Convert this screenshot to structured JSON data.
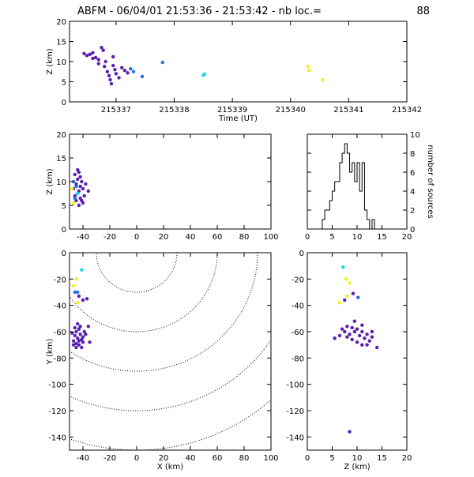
{
  "header": {
    "title": "ABFM - 06/04/01 21:53:36 - 21:53:42 - nb loc.=",
    "count": "88"
  },
  "colors": {
    "purple": "#5a1fb0",
    "blue": "#1f6fe8",
    "cyan": "#18d8e8",
    "yellow": "#f0f020",
    "axis": "#000000"
  },
  "chart_data": [
    {
      "id": "time-height",
      "type": "scatter",
      "xlabel": "Time (UT)",
      "ylabel": "Z (km)",
      "xlim": [
        215336.2,
        215342
      ],
      "ylim": [
        0,
        20
      ],
      "xticks": [
        215337,
        215338,
        215339,
        215340,
        215341,
        215342
      ],
      "yticks": [
        0,
        5,
        10,
        15,
        20
      ],
      "points": [
        [
          215336.45,
          12.0,
          "purple"
        ],
        [
          215336.5,
          11.5,
          "purple"
        ],
        [
          215336.55,
          11.8,
          "purple"
        ],
        [
          215336.6,
          12.2,
          "purple"
        ],
        [
          215336.65,
          11.0,
          "purple"
        ],
        [
          215336.7,
          10.5,
          "purple"
        ],
        [
          215336.75,
          13.5,
          "purple"
        ],
        [
          215336.7,
          9.5,
          "purple"
        ],
        [
          215336.8,
          8.8,
          "purple"
        ],
        [
          215336.78,
          12.8,
          "purple"
        ],
        [
          215336.82,
          10.0,
          "purple"
        ],
        [
          215336.85,
          7.5,
          "purple"
        ],
        [
          215336.88,
          6.5,
          "purple"
        ],
        [
          215336.9,
          5.5,
          "purple"
        ],
        [
          215336.92,
          4.5,
          "purple"
        ],
        [
          215336.95,
          9.0,
          "purple"
        ],
        [
          215336.98,
          8.0,
          "purple"
        ],
        [
          215337.0,
          7.0,
          "purple"
        ],
        [
          215337.05,
          6.0,
          "purple"
        ],
        [
          215337.1,
          8.5,
          "purple"
        ],
        [
          215337.15,
          7.8,
          "purple"
        ],
        [
          215337.2,
          7.2,
          "purple"
        ],
        [
          215336.6,
          10.8,
          "purple"
        ],
        [
          215336.95,
          11.2,
          "purple"
        ],
        [
          215337.25,
          8.2,
          "blue"
        ],
        [
          215337.3,
          7.5,
          "blue"
        ],
        [
          215337.45,
          6.3,
          "blue"
        ],
        [
          215337.8,
          9.8,
          "blue"
        ],
        [
          215338.5,
          6.6,
          "cyan"
        ],
        [
          215338.52,
          6.9,
          "cyan"
        ],
        [
          215340.3,
          8.8,
          "yellow"
        ],
        [
          215340.32,
          7.8,
          "yellow"
        ],
        [
          215340.55,
          5.5,
          "yellow"
        ]
      ]
    },
    {
      "id": "x-height",
      "type": "scatter",
      "xlabel": "",
      "ylabel": "Z (km)",
      "xlim": [
        -50,
        100
      ],
      "ylim": [
        0,
        20
      ],
      "xticks": [
        -40,
        -20,
        0,
        20,
        40,
        60,
        80,
        100
      ],
      "yticks": [
        0,
        5,
        10,
        15,
        20
      ],
      "points": [
        [
          -46,
          11.5,
          "purple"
        ],
        [
          -44,
          10.5,
          "purple"
        ],
        [
          -43,
          12.0,
          "purple"
        ],
        [
          -45,
          9.5,
          "purple"
        ],
        [
          -42,
          9.0,
          "purple"
        ],
        [
          -41,
          10.0,
          "purple"
        ],
        [
          -40,
          8.5,
          "purple"
        ],
        [
          -43,
          8.0,
          "purple"
        ],
        [
          -44,
          7.5,
          "purple"
        ],
        [
          -39,
          7.0,
          "purple"
        ],
        [
          -42,
          6.5,
          "purple"
        ],
        [
          -45,
          6.0,
          "purple"
        ],
        [
          -40,
          5.5,
          "purple"
        ],
        [
          -38,
          9.5,
          "purple"
        ],
        [
          -36,
          8.0,
          "purple"
        ],
        [
          -47,
          8.5,
          "purple"
        ],
        [
          -44,
          12.5,
          "purple"
        ],
        [
          -42,
          11.0,
          "purple"
        ],
        [
          -46,
          7.0,
          "purple"
        ],
        [
          -41,
          6.0,
          "purple"
        ],
        [
          -43,
          5.0,
          "purple"
        ],
        [
          -47,
          10.0,
          "blue"
        ],
        [
          -45,
          9.0,
          "blue"
        ],
        [
          -46,
          6.5,
          "blue"
        ],
        [
          -44,
          7.5,
          "cyan"
        ],
        [
          -48,
          8.5,
          "yellow"
        ],
        [
          -47,
          5.5,
          "yellow"
        ]
      ]
    },
    {
      "id": "histogram",
      "type": "bar",
      "xlabel": "",
      "ylabel": "number of sources",
      "xlim": [
        0,
        20
      ],
      "ylim": [
        0,
        10
      ],
      "xticks": [
        0,
        5,
        10,
        15,
        20
      ],
      "yticks": [
        0,
        2,
        4,
        6,
        8,
        10
      ],
      "bins": [
        [
          3.0,
          1
        ],
        [
          3.5,
          2
        ],
        [
          4.0,
          2
        ],
        [
          4.5,
          3
        ],
        [
          5.0,
          4
        ],
        [
          5.5,
          5
        ],
        [
          6.0,
          5
        ],
        [
          6.5,
          7
        ],
        [
          7.0,
          8
        ],
        [
          7.5,
          9
        ],
        [
          8.0,
          8
        ],
        [
          8.5,
          6
        ],
        [
          9.0,
          7
        ],
        [
          9.5,
          5
        ],
        [
          10.0,
          7
        ],
        [
          10.5,
          4
        ],
        [
          11.0,
          7
        ],
        [
          11.5,
          2
        ],
        [
          12.0,
          1
        ],
        [
          12.5,
          0
        ],
        [
          13.0,
          1
        ],
        [
          13.5,
          0
        ]
      ]
    },
    {
      "id": "plan-view",
      "type": "scatter",
      "xlabel": "X (km)",
      "ylabel": "Y (km)",
      "xlim": [
        -50,
        100
      ],
      "ylim": [
        -150,
        0
      ],
      "xticks": [
        -40,
        -20,
        0,
        20,
        40,
        60,
        80,
        100
      ],
      "yticks": [
        -140,
        -120,
        -100,
        -80,
        -60,
        -40,
        -20,
        0
      ],
      "rings": [
        30,
        60,
        90,
        120,
        150
      ],
      "points": [
        [
          -45,
          -60,
          "purple"
        ],
        [
          -43,
          -58,
          "purple"
        ],
        [
          -46,
          -63,
          "purple"
        ],
        [
          -44,
          -65,
          "purple"
        ],
        [
          -42,
          -62,
          "purple"
        ],
        [
          -41,
          -66,
          "purple"
        ],
        [
          -47,
          -67,
          "purple"
        ],
        [
          -45,
          -69,
          "purple"
        ],
        [
          -43,
          -70,
          "purple"
        ],
        [
          -40,
          -64,
          "purple"
        ],
        [
          -39,
          -60,
          "purple"
        ],
        [
          -42,
          -56,
          "purple"
        ],
        [
          -44,
          -54,
          "purple"
        ],
        [
          -46,
          -57,
          "purple"
        ],
        [
          -48,
          -61,
          "purple"
        ],
        [
          -40,
          -68,
          "purple"
        ],
        [
          -38,
          -62,
          "purple"
        ],
        [
          -41,
          -72,
          "purple"
        ],
        [
          -45,
          -72,
          "purple"
        ],
        [
          -47,
          -70,
          "purple"
        ],
        [
          -43,
          -67,
          "purple"
        ],
        [
          -36,
          -56,
          "purple"
        ],
        [
          -37,
          -35,
          "purple"
        ],
        [
          -43,
          -33,
          "purple"
        ],
        [
          -35,
          -68,
          "purple"
        ],
        [
          -46,
          -30,
          "blue"
        ],
        [
          -44,
          -30,
          "blue"
        ],
        [
          -40,
          -36,
          "purple"
        ],
        [
          -41,
          -13,
          "cyan"
        ],
        [
          -45,
          -20,
          "yellow"
        ],
        [
          -47,
          -25,
          "yellow"
        ],
        [
          -44,
          -38,
          "yellow"
        ]
      ]
    },
    {
      "id": "z-plan",
      "type": "scatter",
      "xlabel": "Z (km)",
      "ylabel": "",
      "xlim": [
        0,
        20
      ],
      "ylim": [
        -150,
        0
      ],
      "xticks": [
        0,
        5,
        10,
        15,
        20
      ],
      "yticks": [
        -140,
        -120,
        -100,
        -80,
        -60,
        -40,
        -20,
        0
      ],
      "points": [
        [
          8,
          -56,
          "purple"
        ],
        [
          9,
          -57,
          "purple"
        ],
        [
          10,
          -58,
          "purple"
        ],
        [
          11,
          -60,
          "purple"
        ],
        [
          12,
          -62,
          "purple"
        ],
        [
          13,
          -64,
          "purple"
        ],
        [
          14,
          -72,
          "purple"
        ],
        [
          9.5,
          -60,
          "purple"
        ],
        [
          10.5,
          -63,
          "purple"
        ],
        [
          11.5,
          -65,
          "purple"
        ],
        [
          12.5,
          -67,
          "purple"
        ],
        [
          8.5,
          -62,
          "purple"
        ],
        [
          7.5,
          -60,
          "purple"
        ],
        [
          6.5,
          -63,
          "purple"
        ],
        [
          5.5,
          -65,
          "purple"
        ],
        [
          7,
          -58,
          "purple"
        ],
        [
          9,
          -66,
          "purple"
        ],
        [
          10,
          -68,
          "purple"
        ],
        [
          11,
          -70,
          "purple"
        ],
        [
          12,
          -70,
          "purple"
        ],
        [
          8,
          -64,
          "purple"
        ],
        [
          13,
          -60,
          "purple"
        ],
        [
          11,
          -55,
          "purple"
        ],
        [
          9.5,
          -52,
          "purple"
        ],
        [
          7.2,
          -11,
          "cyan"
        ],
        [
          7.8,
          -20,
          "yellow"
        ],
        [
          8.5,
          -23,
          "yellow"
        ],
        [
          8.0,
          -33,
          "yellow"
        ],
        [
          6.5,
          -38,
          "yellow"
        ],
        [
          9.2,
          -31,
          "purple"
        ],
        [
          10.2,
          -34,
          "blue"
        ],
        [
          7.5,
          -36,
          "purple"
        ],
        [
          8.5,
          -136,
          "purple"
        ]
      ]
    }
  ]
}
